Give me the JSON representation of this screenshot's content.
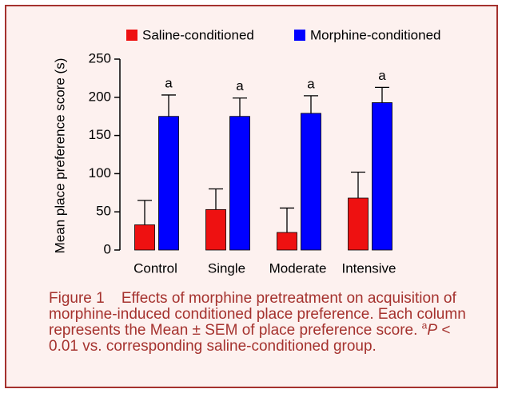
{
  "chart_data": {
    "type": "bar",
    "ylabel": "Mean place preference score (s)",
    "categories": [
      "Control",
      "Single",
      "Moderate",
      "Intensive"
    ],
    "series": [
      {
        "name": "Saline-conditioned",
        "color": "#ee1111",
        "values": [
          33,
          53,
          23,
          68
        ],
        "errors": [
          32,
          27,
          32,
          34
        ]
      },
      {
        "name": "Morphine-conditioned",
        "color": "#0000ff",
        "values": [
          175,
          175,
          179,
          193
        ],
        "errors": [
          28,
          24,
          23,
          20
        ]
      }
    ],
    "annotations": [
      "a",
      "a",
      "a",
      "a"
    ],
    "ylim": [
      0,
      250
    ],
    "yticks": [
      0,
      50,
      100,
      150,
      200,
      250
    ]
  },
  "caption": {
    "label": "Figure 1",
    "text": "Effects of morphine pretreatment on acquisition of morphine-induced conditioned place preference. Each column represents the Mean ± SEM of place preference score.",
    "sup": "a",
    "p": "P",
    "rest": "< 0.01 vs. corresponding saline-conditioned group."
  }
}
